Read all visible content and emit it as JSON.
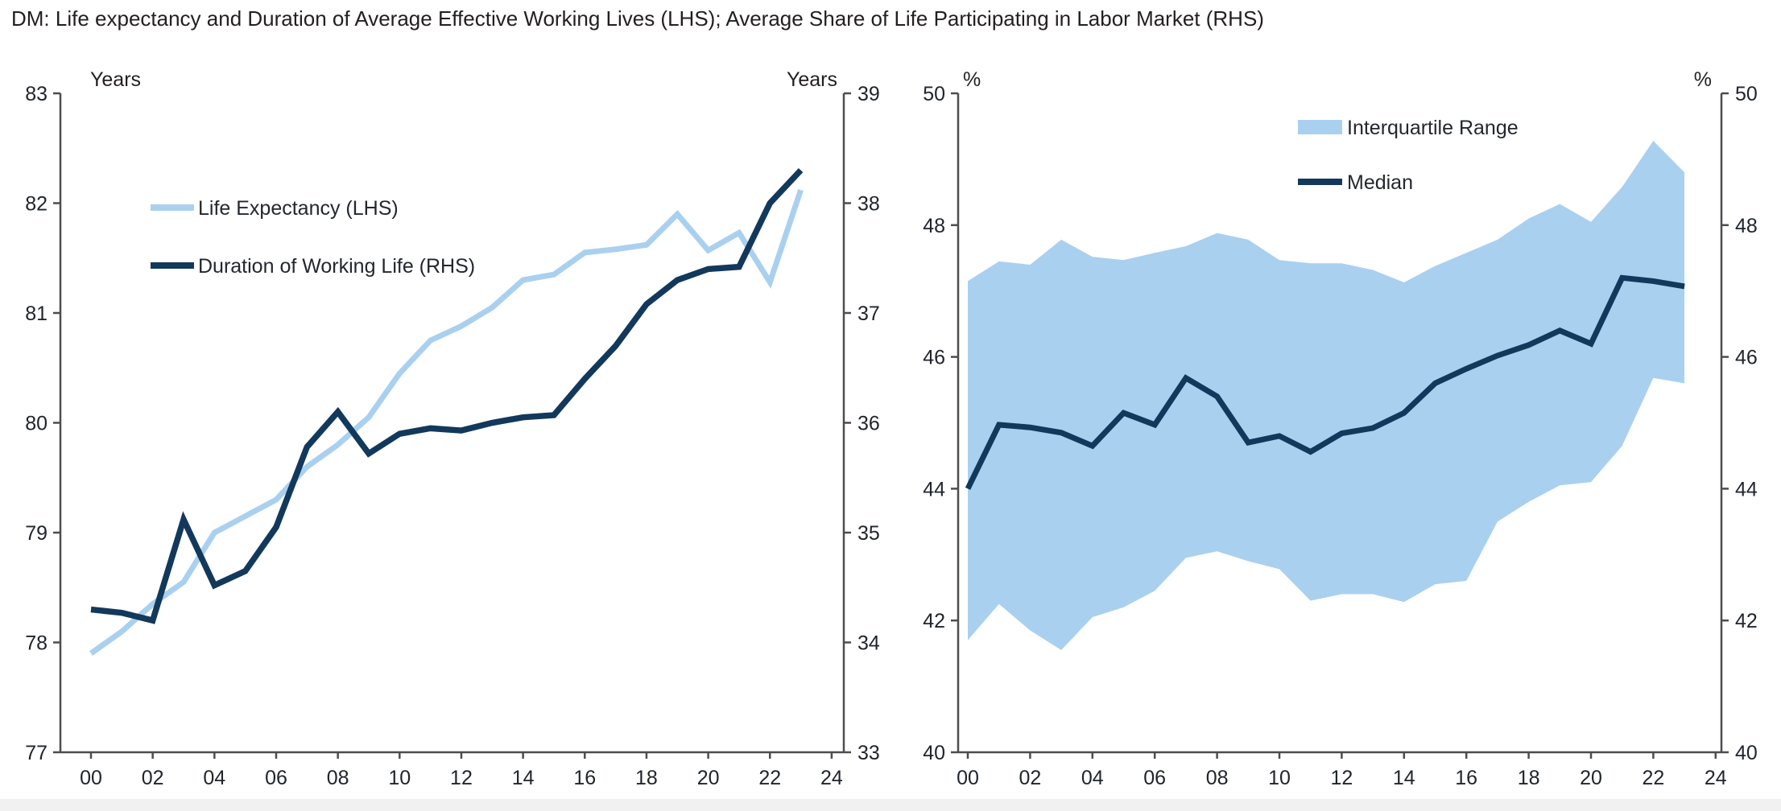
{
  "title": "DM: Life expectancy and Duration of Average Effective Working Lives (LHS); Average Share of Life Participating in Labor Market (RHS)",
  "colors": {
    "light_blue": "#AAD0EF",
    "navy": "#12395C",
    "axis_line": "#4d4d4d",
    "tick_text": "#20252c",
    "title_text": "#231f20",
    "legend_text": "#23272e",
    "background": "#ffffff",
    "bottom_strip": "#f1f1f1"
  },
  "chart_data": [
    {
      "type": "line",
      "panel": "left",
      "y_axis_left": {
        "unit": "Years",
        "min": 77,
        "max": 83,
        "ticks": [
          77,
          78,
          79,
          80,
          81,
          82,
          83
        ]
      },
      "y_axis_right": {
        "unit": "Years",
        "min": 33,
        "max": 39,
        "ticks": [
          33,
          34,
          35,
          36,
          37,
          38,
          39
        ]
      },
      "x_axis": {
        "tick_years": [
          2000,
          2002,
          2004,
          2006,
          2008,
          2010,
          2012,
          2014,
          2016,
          2018,
          2020,
          2022,
          2024
        ],
        "tick_labels": [
          "00",
          "02",
          "04",
          "06",
          "08",
          "10",
          "12",
          "14",
          "16",
          "18",
          "20",
          "22",
          "24"
        ]
      },
      "years": [
        2000,
        2001,
        2002,
        2003,
        2004,
        2005,
        2006,
        2007,
        2008,
        2009,
        2010,
        2011,
        2012,
        2013,
        2014,
        2015,
        2016,
        2017,
        2018,
        2019,
        2020,
        2021,
        2022,
        2023
      ],
      "series": [
        {
          "name": "Life Expectancy (LHS)",
          "axis": "left",
          "color_key": "light_blue",
          "line_width": 7,
          "values": [
            77.9,
            78.1,
            78.35,
            78.55,
            79.0,
            79.15,
            79.3,
            79.6,
            79.8,
            80.05,
            80.45,
            80.75,
            80.88,
            81.05,
            81.3,
            81.35,
            81.55,
            81.58,
            81.62,
            81.9,
            81.57,
            81.73,
            81.28,
            82.12
          ]
        },
        {
          "name": "Duration of Working Life (RHS)",
          "axis": "right",
          "color_key": "navy",
          "line_width": 7.5,
          "values": [
            34.3,
            34.27,
            34.2,
            35.12,
            34.52,
            34.65,
            35.05,
            35.78,
            36.1,
            35.72,
            35.9,
            35.95,
            35.93,
            36.0,
            36.05,
            36.07,
            36.4,
            36.7,
            37.08,
            37.3,
            37.4,
            37.42,
            38.0,
            38.3
          ]
        }
      ]
    },
    {
      "type": "area-line",
      "panel": "right",
      "y_axis_left": {
        "unit": "%",
        "min": 40,
        "max": 50,
        "ticks": [
          40,
          42,
          44,
          46,
          48,
          50
        ]
      },
      "y_axis_right": {
        "unit": "%",
        "min": 40,
        "max": 50,
        "ticks": [
          40,
          42,
          44,
          46,
          48,
          50
        ]
      },
      "x_axis": {
        "tick_years": [
          2000,
          2002,
          2004,
          2006,
          2008,
          2010,
          2012,
          2014,
          2016,
          2018,
          2020,
          2022,
          2024
        ],
        "tick_labels": [
          "00",
          "02",
          "04",
          "06",
          "08",
          "10",
          "12",
          "14",
          "16",
          "18",
          "20",
          "22",
          "24"
        ]
      },
      "years": [
        2000,
        2001,
        2002,
        2003,
        2004,
        2005,
        2006,
        2007,
        2008,
        2009,
        2010,
        2011,
        2012,
        2013,
        2014,
        2015,
        2016,
        2017,
        2018,
        2019,
        2020,
        2021,
        2022,
        2023
      ],
      "band": {
        "name": "Interquartile Range",
        "color_key": "light_blue",
        "upper": [
          47.15,
          47.45,
          47.4,
          47.78,
          47.52,
          47.47,
          47.58,
          47.68,
          47.88,
          47.78,
          47.47,
          47.42,
          47.42,
          47.32,
          47.13,
          47.38,
          47.58,
          47.78,
          48.1,
          48.32,
          48.05,
          48.58,
          49.28,
          48.8
        ],
        "lower": [
          41.7,
          42.25,
          41.85,
          41.55,
          42.05,
          42.2,
          42.45,
          42.95,
          43.05,
          42.9,
          42.78,
          42.3,
          42.4,
          42.4,
          42.28,
          42.55,
          42.6,
          43.5,
          43.8,
          44.05,
          44.1,
          44.65,
          45.68,
          45.6
        ]
      },
      "series": [
        {
          "name": "Median",
          "axis": "left",
          "color_key": "navy",
          "line_width": 7,
          "values": [
            44.0,
            44.97,
            44.93,
            44.85,
            44.65,
            45.15,
            44.97,
            45.68,
            45.4,
            44.7,
            44.8,
            44.56,
            44.84,
            44.92,
            45.15,
            45.6,
            45.82,
            46.02,
            46.18,
            46.4,
            46.2,
            47.2,
            47.15,
            47.07
          ]
        }
      ]
    }
  ]
}
